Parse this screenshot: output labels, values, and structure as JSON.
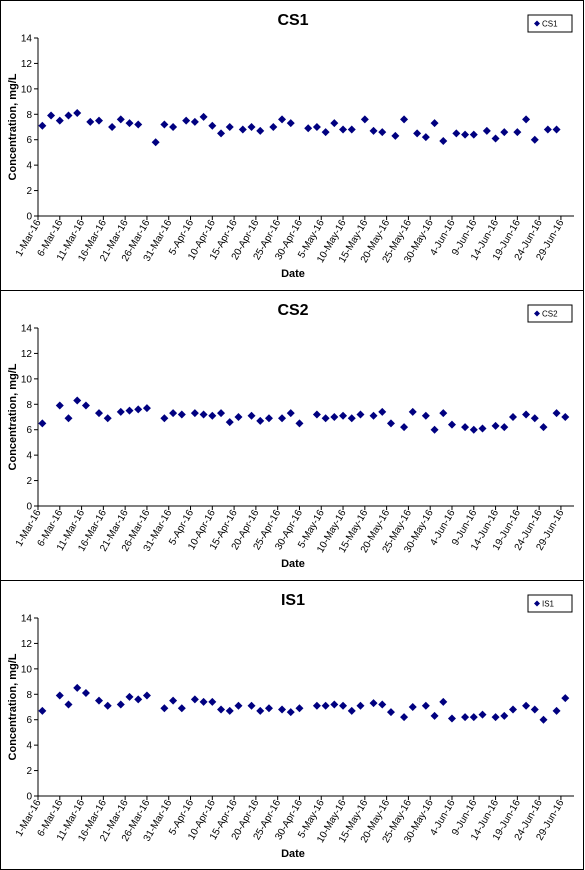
{
  "colors": {
    "marker": "#000080",
    "axis": "#000000",
    "text": "#000000"
  },
  "charts": [
    {
      "chart_data": {
        "type": "scatter",
        "title": "CS1",
        "xlabel": "Date",
        "ylabel": "Concentration, mg/L",
        "ylim": [
          0,
          14
        ],
        "yticks": [
          0,
          2,
          4,
          6,
          8,
          10,
          12,
          14
        ],
        "xlim": [
          "2016-03-01",
          "2016-07-02"
        ],
        "xtick_labels": [
          "1-Mar-16",
          "6-Mar-16",
          "11-Mar-16",
          "16-Mar-16",
          "21-Mar-16",
          "26-Mar-16",
          "31-Mar-16",
          "5-Apr-16",
          "10-Apr-16",
          "15-Apr-16",
          "20-Apr-16",
          "25-Apr-16",
          "30-Apr-16",
          "5-May-16",
          "10-May-16",
          "15-May-16",
          "20-May-16",
          "25-May-16",
          "30-May-16",
          "4-Jun-16",
          "9-Jun-16",
          "14-Jun-16",
          "19-Jun-16",
          "24-Jun-16",
          "29-Jun-16"
        ],
        "grid": false,
        "legend_position": "top-right",
        "series": [
          {
            "name": "CS1",
            "points": [
              {
                "x": "2016-03-02",
                "y": 7.1
              },
              {
                "x": "2016-03-04",
                "y": 7.9
              },
              {
                "x": "2016-03-06",
                "y": 7.5
              },
              {
                "x": "2016-03-08",
                "y": 7.9
              },
              {
                "x": "2016-03-10",
                "y": 8.1
              },
              {
                "x": "2016-03-13",
                "y": 7.4
              },
              {
                "x": "2016-03-15",
                "y": 7.5
              },
              {
                "x": "2016-03-18",
                "y": 7.0
              },
              {
                "x": "2016-03-20",
                "y": 7.6
              },
              {
                "x": "2016-03-22",
                "y": 7.3
              },
              {
                "x": "2016-03-24",
                "y": 7.2
              },
              {
                "x": "2016-03-28",
                "y": 5.8
              },
              {
                "x": "2016-03-30",
                "y": 7.2
              },
              {
                "x": "2016-04-01",
                "y": 7.0
              },
              {
                "x": "2016-04-04",
                "y": 7.5
              },
              {
                "x": "2016-04-06",
                "y": 7.4
              },
              {
                "x": "2016-04-08",
                "y": 7.8
              },
              {
                "x": "2016-04-10",
                "y": 7.1
              },
              {
                "x": "2016-04-12",
                "y": 6.5
              },
              {
                "x": "2016-04-14",
                "y": 7.0
              },
              {
                "x": "2016-04-17",
                "y": 6.8
              },
              {
                "x": "2016-04-19",
                "y": 7.0
              },
              {
                "x": "2016-04-21",
                "y": 6.7
              },
              {
                "x": "2016-04-24",
                "y": 7.0
              },
              {
                "x": "2016-04-26",
                "y": 7.6
              },
              {
                "x": "2016-04-28",
                "y": 7.3
              },
              {
                "x": "2016-05-02",
                "y": 6.9
              },
              {
                "x": "2016-05-04",
                "y": 7.0
              },
              {
                "x": "2016-05-06",
                "y": 6.6
              },
              {
                "x": "2016-05-08",
                "y": 7.3
              },
              {
                "x": "2016-05-10",
                "y": 6.8
              },
              {
                "x": "2016-05-12",
                "y": 6.8
              },
              {
                "x": "2016-05-15",
                "y": 7.6
              },
              {
                "x": "2016-05-17",
                "y": 6.7
              },
              {
                "x": "2016-05-19",
                "y": 6.6
              },
              {
                "x": "2016-05-22",
                "y": 6.3
              },
              {
                "x": "2016-05-24",
                "y": 7.6
              },
              {
                "x": "2016-05-27",
                "y": 6.5
              },
              {
                "x": "2016-05-29",
                "y": 6.2
              },
              {
                "x": "2016-05-31",
                "y": 7.3
              },
              {
                "x": "2016-06-02",
                "y": 5.9
              },
              {
                "x": "2016-06-05",
                "y": 6.5
              },
              {
                "x": "2016-06-07",
                "y": 6.4
              },
              {
                "x": "2016-06-09",
                "y": 6.4
              },
              {
                "x": "2016-06-12",
                "y": 6.7
              },
              {
                "x": "2016-06-14",
                "y": 6.1
              },
              {
                "x": "2016-06-16",
                "y": 6.6
              },
              {
                "x": "2016-06-19",
                "y": 6.6
              },
              {
                "x": "2016-06-21",
                "y": 7.6
              },
              {
                "x": "2016-06-23",
                "y": 6.0
              },
              {
                "x": "2016-06-26",
                "y": 6.8
              },
              {
                "x": "2016-06-28",
                "y": 6.8
              }
            ]
          }
        ]
      }
    },
    {
      "chart_data": {
        "type": "scatter",
        "title": "CS2",
        "xlabel": "Date",
        "ylabel": "Concentration, mg/L",
        "ylim": [
          0,
          14
        ],
        "yticks": [
          0,
          2,
          4,
          6,
          8,
          10,
          12,
          14
        ],
        "xlim": [
          "2016-03-01",
          "2016-07-02"
        ],
        "xtick_labels": [
          "1-Mar-16",
          "6-Mar-16",
          "11-Mar-16",
          "16-Mar-16",
          "21-Mar-16",
          "26-Mar-16",
          "31-Mar-16",
          "5-Apr-16",
          "10-Apr-16",
          "15-Apr-16",
          "20-Apr-16",
          "25-Apr-16",
          "30-Apr-16",
          "5-May-16",
          "10-May-16",
          "15-May-16",
          "20-May-16",
          "25-May-16",
          "30-May-16",
          "4-Jun-16",
          "9-Jun-16",
          "14-Jun-16",
          "19-Jun-16",
          "24-Jun-16",
          "29-Jun-16"
        ],
        "grid": false,
        "legend_position": "top-right",
        "series": [
          {
            "name": "CS2",
            "points": [
              {
                "x": "2016-03-02",
                "y": 6.5
              },
              {
                "x": "2016-03-06",
                "y": 7.9
              },
              {
                "x": "2016-03-08",
                "y": 6.9
              },
              {
                "x": "2016-03-10",
                "y": 8.3
              },
              {
                "x": "2016-03-12",
                "y": 7.9
              },
              {
                "x": "2016-03-15",
                "y": 7.3
              },
              {
                "x": "2016-03-17",
                "y": 6.9
              },
              {
                "x": "2016-03-20",
                "y": 7.4
              },
              {
                "x": "2016-03-22",
                "y": 7.5
              },
              {
                "x": "2016-03-24",
                "y": 7.6
              },
              {
                "x": "2016-03-26",
                "y": 7.7
              },
              {
                "x": "2016-03-30",
                "y": 6.9
              },
              {
                "x": "2016-04-01",
                "y": 7.3
              },
              {
                "x": "2016-04-03",
                "y": 7.2
              },
              {
                "x": "2016-04-06",
                "y": 7.3
              },
              {
                "x": "2016-04-08",
                "y": 7.2
              },
              {
                "x": "2016-04-10",
                "y": 7.1
              },
              {
                "x": "2016-04-12",
                "y": 7.3
              },
              {
                "x": "2016-04-14",
                "y": 6.6
              },
              {
                "x": "2016-04-16",
                "y": 7.0
              },
              {
                "x": "2016-04-19",
                "y": 7.1
              },
              {
                "x": "2016-04-21",
                "y": 6.7
              },
              {
                "x": "2016-04-23",
                "y": 6.9
              },
              {
                "x": "2016-04-26",
                "y": 6.9
              },
              {
                "x": "2016-04-28",
                "y": 7.3
              },
              {
                "x": "2016-04-30",
                "y": 6.5
              },
              {
                "x": "2016-05-04",
                "y": 7.2
              },
              {
                "x": "2016-05-06",
                "y": 6.9
              },
              {
                "x": "2016-05-08",
                "y": 7.0
              },
              {
                "x": "2016-05-10",
                "y": 7.1
              },
              {
                "x": "2016-05-12",
                "y": 6.9
              },
              {
                "x": "2016-05-14",
                "y": 7.2
              },
              {
                "x": "2016-05-17",
                "y": 7.1
              },
              {
                "x": "2016-05-19",
                "y": 7.4
              },
              {
                "x": "2016-05-21",
                "y": 6.5
              },
              {
                "x": "2016-05-24",
                "y": 6.2
              },
              {
                "x": "2016-05-26",
                "y": 7.4
              },
              {
                "x": "2016-05-29",
                "y": 7.1
              },
              {
                "x": "2016-05-31",
                "y": 6.0
              },
              {
                "x": "2016-06-02",
                "y": 7.3
              },
              {
                "x": "2016-06-04",
                "y": 6.4
              },
              {
                "x": "2016-06-07",
                "y": 6.2
              },
              {
                "x": "2016-06-09",
                "y": 6.0
              },
              {
                "x": "2016-06-11",
                "y": 6.1
              },
              {
                "x": "2016-06-14",
                "y": 6.3
              },
              {
                "x": "2016-06-16",
                "y": 6.2
              },
              {
                "x": "2016-06-18",
                "y": 7.0
              },
              {
                "x": "2016-06-21",
                "y": 7.2
              },
              {
                "x": "2016-06-23",
                "y": 6.9
              },
              {
                "x": "2016-06-25",
                "y": 6.2
              },
              {
                "x": "2016-06-28",
                "y": 7.3
              },
              {
                "x": "2016-06-30",
                "y": 7.0
              }
            ]
          }
        ]
      }
    },
    {
      "chart_data": {
        "type": "scatter",
        "title": "IS1",
        "xlabel": "Date",
        "ylabel": "Concentration, mg/L",
        "ylim": [
          0,
          14
        ],
        "yticks": [
          0,
          2,
          4,
          6,
          8,
          10,
          12,
          14
        ],
        "xlim": [
          "2016-03-01",
          "2016-07-02"
        ],
        "xtick_labels": [
          "1-Mar-16",
          "6-Mar-16",
          "11-Mar-16",
          "16-Mar-16",
          "21-Mar-16",
          "26-Mar-16",
          "31-Mar-16",
          "5-Apr-16",
          "10-Apr-16",
          "15-Apr-16",
          "20-Apr-16",
          "25-Apr-16",
          "30-Apr-16",
          "5-May-16",
          "10-May-16",
          "15-May-16",
          "20-May-16",
          "25-May-16",
          "30-May-16",
          "4-Jun-16",
          "9-Jun-16",
          "14-Jun-16",
          "19-Jun-16",
          "24-Jun-16",
          "29-Jun-16"
        ],
        "grid": false,
        "legend_position": "top-right",
        "series": [
          {
            "name": "IS1",
            "points": [
              {
                "x": "2016-03-02",
                "y": 6.7
              },
              {
                "x": "2016-03-06",
                "y": 7.9
              },
              {
                "x": "2016-03-08",
                "y": 7.2
              },
              {
                "x": "2016-03-10",
                "y": 8.5
              },
              {
                "x": "2016-03-12",
                "y": 8.1
              },
              {
                "x": "2016-03-15",
                "y": 7.5
              },
              {
                "x": "2016-03-17",
                "y": 7.1
              },
              {
                "x": "2016-03-20",
                "y": 7.2
              },
              {
                "x": "2016-03-22",
                "y": 7.8
              },
              {
                "x": "2016-03-24",
                "y": 7.6
              },
              {
                "x": "2016-03-26",
                "y": 7.9
              },
              {
                "x": "2016-03-30",
                "y": 6.9
              },
              {
                "x": "2016-04-01",
                "y": 7.5
              },
              {
                "x": "2016-04-03",
                "y": 6.9
              },
              {
                "x": "2016-04-06",
                "y": 7.6
              },
              {
                "x": "2016-04-08",
                "y": 7.4
              },
              {
                "x": "2016-04-10",
                "y": 7.4
              },
              {
                "x": "2016-04-12",
                "y": 6.8
              },
              {
                "x": "2016-04-14",
                "y": 6.7
              },
              {
                "x": "2016-04-16",
                "y": 7.1
              },
              {
                "x": "2016-04-19",
                "y": 7.1
              },
              {
                "x": "2016-04-21",
                "y": 6.7
              },
              {
                "x": "2016-04-23",
                "y": 6.9
              },
              {
                "x": "2016-04-26",
                "y": 6.8
              },
              {
                "x": "2016-04-28",
                "y": 6.6
              },
              {
                "x": "2016-04-30",
                "y": 6.9
              },
              {
                "x": "2016-05-04",
                "y": 7.1
              },
              {
                "x": "2016-05-06",
                "y": 7.1
              },
              {
                "x": "2016-05-08",
                "y": 7.2
              },
              {
                "x": "2016-05-10",
                "y": 7.1
              },
              {
                "x": "2016-05-12",
                "y": 6.7
              },
              {
                "x": "2016-05-14",
                "y": 7.1
              },
              {
                "x": "2016-05-17",
                "y": 7.3
              },
              {
                "x": "2016-05-19",
                "y": 7.2
              },
              {
                "x": "2016-05-21",
                "y": 6.6
              },
              {
                "x": "2016-05-24",
                "y": 6.2
              },
              {
                "x": "2016-05-26",
                "y": 7.0
              },
              {
                "x": "2016-05-29",
                "y": 7.1
              },
              {
                "x": "2016-05-31",
                "y": 6.3
              },
              {
                "x": "2016-06-02",
                "y": 7.4
              },
              {
                "x": "2016-06-04",
                "y": 6.1
              },
              {
                "x": "2016-06-07",
                "y": 6.2
              },
              {
                "x": "2016-06-09",
                "y": 6.2
              },
              {
                "x": "2016-06-11",
                "y": 6.4
              },
              {
                "x": "2016-06-14",
                "y": 6.2
              },
              {
                "x": "2016-06-16",
                "y": 6.3
              },
              {
                "x": "2016-06-18",
                "y": 6.8
              },
              {
                "x": "2016-06-21",
                "y": 7.1
              },
              {
                "x": "2016-06-23",
                "y": 6.8
              },
              {
                "x": "2016-06-25",
                "y": 6.0
              },
              {
                "x": "2016-06-28",
                "y": 6.7
              },
              {
                "x": "2016-06-30",
                "y": 7.7
              }
            ]
          }
        ]
      }
    }
  ]
}
